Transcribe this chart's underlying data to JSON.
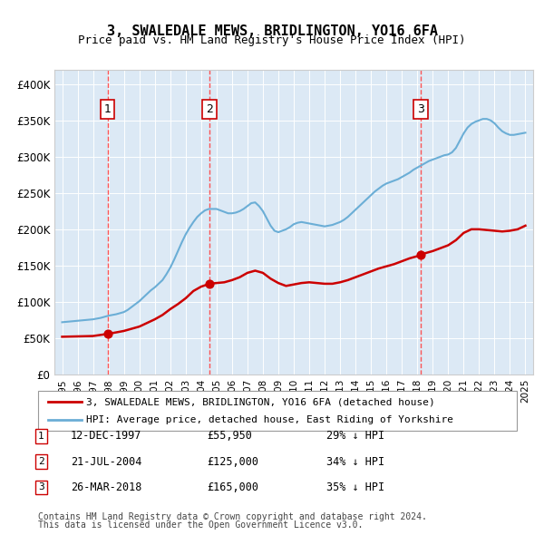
{
  "title": "3, SWALEDALE MEWS, BRIDLINGTON, YO16 6FA",
  "subtitle": "Price paid vs. HM Land Registry's House Price Index (HPI)",
  "legend_line1": "3, SWALEDALE MEWS, BRIDLINGTON, YO16 6FA (detached house)",
  "legend_line2": "HPI: Average price, detached house, East Riding of Yorkshire",
  "footer1": "Contains HM Land Registry data © Crown copyright and database right 2024.",
  "footer2": "This data is licensed under the Open Government Licence v3.0.",
  "transactions": [
    {
      "num": 1,
      "date": "12-DEC-1997",
      "price": 55950,
      "pct": "29% ↓ HPI",
      "year": 1997.95
    },
    {
      "num": 2,
      "date": "21-JUL-2004",
      "price": 125000,
      "pct": "34% ↓ HPI",
      "year": 2004.55
    },
    {
      "num": 3,
      "date": "26-MAR-2018",
      "price": 165000,
      "pct": "35% ↓ HPI",
      "year": 2018.23
    }
  ],
  "hpi_line_color": "#6baed6",
  "price_line_color": "#cc0000",
  "dashed_line_color": "#ff4444",
  "background_color": "#dce9f5",
  "plot_bg": "#dce9f5",
  "ylim": [
    0,
    420000
  ],
  "xlim_start": 1994.5,
  "xlim_end": 2025.5,
  "yticks": [
    0,
    50000,
    100000,
    150000,
    200000,
    250000,
    300000,
    350000,
    400000
  ],
  "ytick_labels": [
    "£0",
    "£50K",
    "£100K",
    "£150K",
    "£200K",
    "£250K",
    "£300K",
    "£350K",
    "£400K"
  ],
  "xticks": [
    1995,
    1996,
    1997,
    1998,
    1999,
    2000,
    2001,
    2002,
    2003,
    2004,
    2005,
    2006,
    2007,
    2008,
    2009,
    2010,
    2011,
    2012,
    2013,
    2014,
    2015,
    2016,
    2017,
    2018,
    2019,
    2020,
    2021,
    2022,
    2023,
    2024,
    2025
  ]
}
